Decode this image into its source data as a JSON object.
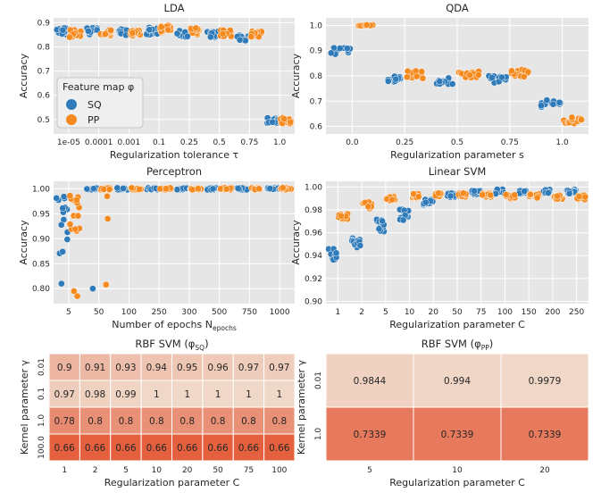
{
  "colors": {
    "SQ": "#2f7ab9",
    "PP": "#f58a1f",
    "panel_bg": "#e6e6e6",
    "grid": "#ffffff",
    "heat_low": "#f0d8c8",
    "heat_high": "#e4603f"
  },
  "legend": {
    "title": "Feature map φ",
    "items": [
      "SQ",
      "PP"
    ]
  },
  "chart_data": [
    {
      "type": "scatter",
      "title": "LDA",
      "xlabel": "Regularization tolerance τ",
      "ylabel": "Accuracy",
      "categories": [
        "1e-05",
        "0.0001",
        "0.001",
        "0.1",
        "0.25",
        "0.5",
        "0.75",
        "1.0"
      ],
      "ylim": [
        0.44,
        0.92
      ],
      "yticks": [
        0.5,
        0.6,
        0.7,
        0.8,
        0.9
      ],
      "ytick_labels": [
        "0.5",
        "0.6",
        "0.7",
        "0.8",
        "0.9"
      ],
      "series": [
        {
          "name": "SQ",
          "center": [
            0.865,
            0.865,
            0.86,
            0.865,
            0.855,
            0.85,
            0.835,
            0.495
          ],
          "spread": [
            0.015,
            0.015,
            0.015,
            0.015,
            0.015,
            0.015,
            0.015,
            0.012
          ]
        },
        {
          "name": "PP",
          "center": [
            0.855,
            0.855,
            0.855,
            0.875,
            0.865,
            0.855,
            0.855,
            0.495
          ],
          "spread": [
            0.015,
            0.015,
            0.015,
            0.015,
            0.015,
            0.015,
            0.015,
            0.012
          ]
        }
      ],
      "legend": true
    },
    {
      "type": "scatter",
      "title": "QDA",
      "xlabel": "Regularization parameter s",
      "ylabel": "Accuracy",
      "categories": [
        "0.0",
        "0.25",
        "0.5",
        "0.75",
        "1.0"
      ],
      "ylim": [
        0.57,
        1.03
      ],
      "yticks": [
        0.6,
        0.7,
        0.8,
        0.9,
        1.0
      ],
      "ytick_labels": [
        "0.6",
        "0.7",
        "0.8",
        "0.9",
        "1.0"
      ],
      "series": [
        {
          "name": "SQ",
          "center": [
            0.9,
            0.785,
            0.78,
            0.785,
            0.685
          ],
          "spread": [
            0.015,
            0.015,
            0.015,
            0.015,
            0.02
          ]
        },
        {
          "name": "PP",
          "center": [
            1.0,
            0.805,
            0.805,
            0.81,
            0.625
          ],
          "spread": [
            0.002,
            0.015,
            0.015,
            0.015,
            0.015
          ]
        }
      ]
    },
    {
      "type": "scatter",
      "title": "Perceptron",
      "xlabel": "Number of epochs N_epochs",
      "ylabel": "Accuracy",
      "categories": [
        "5",
        "50",
        "100",
        "250",
        "300",
        "500",
        "750",
        "1000"
      ],
      "ylim": [
        0.77,
        1.015
      ],
      "yticks": [
        0.8,
        0.85,
        0.9,
        0.95,
        1.0
      ],
      "ytick_labels": [
        "0.80",
        "0.85",
        "0.90",
        "0.95",
        "1.00"
      ],
      "series": [
        {
          "name": "SQ",
          "center": [
            0.93,
            1.0,
            1.0,
            1.0,
            1.0,
            1.0,
            1.0,
            1.0
          ],
          "spread": [
            0.06,
            0.002,
            0.002,
            0.002,
            0.002,
            0.002,
            0.002,
            0.002
          ],
          "outliers": [
            [
              0,
              0.81
            ],
            [
              1,
              0.8
            ]
          ]
        },
        {
          "name": "PP",
          "center": [
            0.95,
            1.0,
            1.0,
            1.0,
            1.0,
            1.0,
            1.0,
            1.0
          ],
          "spread": [
            0.04,
            0.002,
            0.002,
            0.002,
            0.002,
            0.002,
            0.002,
            0.002
          ],
          "outliers": [
            [
              0,
              0.795
            ],
            [
              0,
              0.785
            ],
            [
              1,
              0.808
            ],
            [
              1,
              0.94
            ],
            [
              1,
              0.985
            ]
          ]
        }
      ]
    },
    {
      "type": "scatter",
      "title": "Linear SVM",
      "xlabel": "Regularization parameter C",
      "ylabel": "Accuracy",
      "categories": [
        "1",
        "2",
        "5",
        "10",
        "20",
        "50",
        "75",
        "100",
        "150",
        "200",
        "250"
      ],
      "ylim": [
        0.898,
        1.005
      ],
      "yticks": [
        0.9,
        0.92,
        0.94,
        0.96,
        0.98,
        1.0
      ],
      "ytick_labels": [
        "0.90",
        "0.92",
        "0.94",
        "0.96",
        "0.98",
        "1.00"
      ],
      "series": [
        {
          "name": "SQ",
          "center": [
            0.94,
            0.952,
            0.966,
            0.976,
            0.986,
            0.993,
            0.995,
            0.996,
            0.996,
            0.996,
            0.996
          ],
          "spread": [
            0.006,
            0.005,
            0.006,
            0.005,
            0.003,
            0.002,
            0.002,
            0.002,
            0.002,
            0.002,
            0.002
          ]
        },
        {
          "name": "PP",
          "center": [
            0.974,
            0.984,
            0.99,
            0.992,
            0.993,
            0.993,
            0.993,
            0.992,
            0.992,
            0.991,
            0.991
          ],
          "spread": [
            0.003,
            0.003,
            0.002,
            0.002,
            0.002,
            0.002,
            0.002,
            0.002,
            0.002,
            0.002,
            0.002
          ]
        }
      ]
    },
    {
      "type": "heatmap",
      "title": "RBF SVM (φ_SQ)",
      "xlabel": "Regularization parameter C",
      "ylabel": "Kernel parameter γ",
      "xcategories": [
        "1",
        "2",
        "5",
        "10",
        "20",
        "50",
        "75",
        "100"
      ],
      "ycategories": [
        "0.01",
        "0.1",
        "1.0",
        "100.0"
      ],
      "values": [
        [
          "0.9",
          "0.91",
          "0.93",
          "0.94",
          "0.95",
          "0.96",
          "0.97",
          "0.97"
        ],
        [
          "0.97",
          "0.98",
          "0.99",
          "1",
          "1",
          "1",
          "1",
          "1"
        ],
        [
          "0.78",
          "0.8",
          "0.8",
          "0.8",
          "0.8",
          "0.8",
          "0.8",
          "0.8"
        ],
        [
          "0.66",
          "0.66",
          "0.66",
          "0.66",
          "0.66",
          "0.66",
          "0.66",
          "0.66"
        ]
      ]
    },
    {
      "type": "heatmap",
      "title": "RBF SVM (φ_PP)",
      "xlabel": "Regularization parameter C",
      "ylabel": "Kernel parameter γ",
      "xcategories": [
        "5",
        "10",
        "20"
      ],
      "ycategories": [
        "0.01",
        "1.0"
      ],
      "values": [
        [
          "0.9844",
          "0.994",
          "0.9979"
        ],
        [
          "0.7339",
          "0.7339",
          "0.7339"
        ]
      ]
    }
  ]
}
